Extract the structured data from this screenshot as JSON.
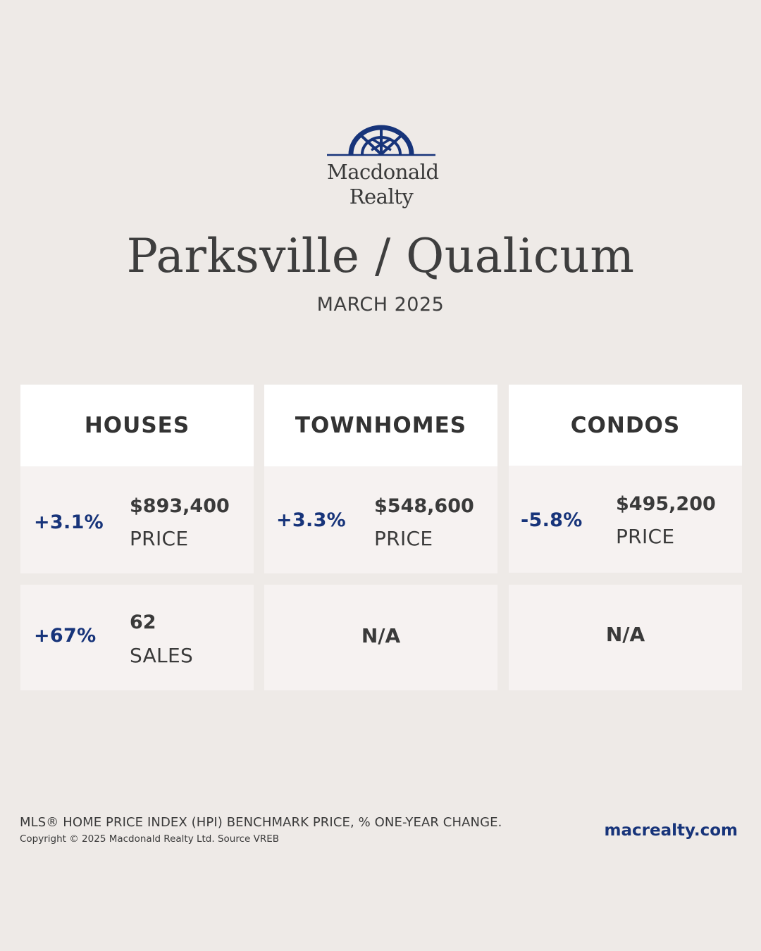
{
  "brand": {
    "logo_line1": "Macdonald",
    "logo_line2": "Realty",
    "accent_color": "#17347a"
  },
  "header": {
    "title": "Parksville / Qualicum",
    "subtitle": "MARCH 2025"
  },
  "categories": [
    {
      "name": "HOUSES",
      "price": {
        "change": "+3.1%",
        "value": "$893,400",
        "label": "PRICE"
      },
      "sales": {
        "change": "+67%",
        "value": "62",
        "label": "SALES"
      }
    },
    {
      "name": "TOWNHOMES",
      "price": {
        "change": "+3.3%",
        "value": "$548,600",
        "label": "PRICE"
      },
      "sales": {
        "na": "N/A"
      }
    },
    {
      "name": "CONDOS",
      "price": {
        "change": "-5.8%",
        "value": "$495,200",
        "label": "PRICE"
      },
      "sales": {
        "na": "N/A"
      }
    }
  ],
  "footer": {
    "note": "MLS® HOME PRICE INDEX (HPI) BENCHMARK PRICE, % ONE-YEAR CHANGE.",
    "copyright": "Copyright © 2025 Macdonald Realty Ltd. Source VREB",
    "website": "macrealty.com"
  }
}
